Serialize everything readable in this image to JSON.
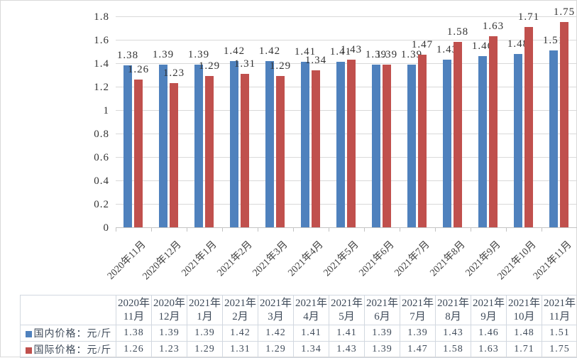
{
  "chart_data": {
    "type": "bar",
    "categories": [
      "2020年11月",
      "2020年12月",
      "2021年1月",
      "2021年2月",
      "2021年3月",
      "2021年4月",
      "2021年5月",
      "2021年6月",
      "2021年7月",
      "2021年8月",
      "2021年9月",
      "2021年10月",
      "2021年11月"
    ],
    "series": [
      {
        "name": "国内价格：元/斤",
        "color": "#4F81BD",
        "values": [
          1.38,
          1.39,
          1.39,
          1.42,
          1.42,
          1.41,
          1.41,
          1.39,
          1.39,
          1.43,
          1.46,
          1.48,
          1.51
        ]
      },
      {
        "name": "国际价格：元/斤",
        "color": "#C0504D",
        "values": [
          1.26,
          1.23,
          1.29,
          1.31,
          1.29,
          1.34,
          1.43,
          1.39,
          1.47,
          1.58,
          1.63,
          1.71,
          1.75
        ]
      }
    ],
    "ylim": [
      0,
      1.8
    ],
    "ytick_step": 0.2,
    "ytick_labels": [
      "1.8",
      "1.6",
      "1.4",
      "1.2",
      "1",
      "0.8",
      "0.6",
      "0.4",
      "0.2",
      "0"
    ],
    "grid": true,
    "value_labels": true,
    "value_label_format": "0.00",
    "legend_position": "table-rows-left"
  },
  "table": {
    "column_headers": [
      [
        "2020年",
        "11月"
      ],
      [
        "2020年",
        "12月"
      ],
      [
        "2021年",
        "1月"
      ],
      [
        "2021年",
        "2月"
      ],
      [
        "2021年",
        "3月"
      ],
      [
        "2021年",
        "4月"
      ],
      [
        "2021年",
        "5月"
      ],
      [
        "2021年",
        "6月"
      ],
      [
        "2021年",
        "7月"
      ],
      [
        "2021年",
        "8月"
      ],
      [
        "2021年",
        "9月"
      ],
      [
        "2021年",
        "10月"
      ],
      [
        "2021年",
        "11月"
      ]
    ],
    "rows": [
      {
        "marker_color": "#4F81BD",
        "label": "国内价格：元/斤",
        "values": [
          "1.38",
          "1.39",
          "1.39",
          "1.42",
          "1.42",
          "1.41",
          "1.41",
          "1.39",
          "1.39",
          "1.43",
          "1.46",
          "1.48",
          "1.51"
        ]
      },
      {
        "marker_color": "#C0504D",
        "label": "国际价格：元/斤",
        "values": [
          "1.26",
          "1.23",
          "1.29",
          "1.31",
          "1.29",
          "1.34",
          "1.43",
          "1.39",
          "1.47",
          "1.58",
          "1.63",
          "1.71",
          "1.75"
        ]
      }
    ]
  },
  "colors": {
    "domestic_series": "#4F81BD",
    "international_series": "#C0504D",
    "gridline": "#D9D9D9",
    "axis_line": "#C3C3C3",
    "chart_text": "#333333",
    "table_text": "#3E4A59",
    "table_border": "#D2D8E0",
    "frame_border": "#D9D9D9"
  }
}
